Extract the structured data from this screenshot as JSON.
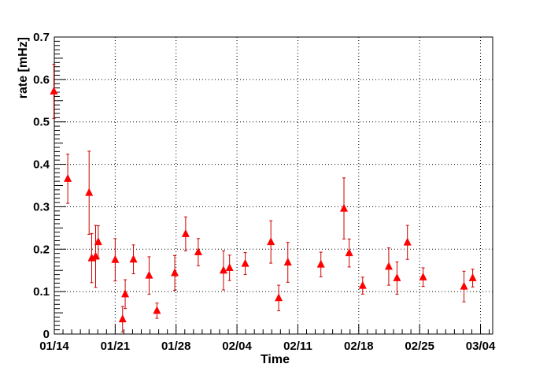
{
  "chart_data": {
    "type": "scatter",
    "title": "",
    "xlabel": "Time",
    "ylabel": "rate [mHz]",
    "x_ticks": [
      "01/14",
      "01/21",
      "01/28",
      "02/04",
      "02/11",
      "02/18",
      "02/25",
      "03/04"
    ],
    "x_tick_days": [
      13,
      20,
      27,
      34,
      41,
      48,
      55,
      62
    ],
    "xlim": [
      13.0,
      63.4
    ],
    "ylim": [
      0,
      0.7
    ],
    "y_ticks": [
      0,
      0.1,
      0.2,
      0.3,
      0.4,
      0.5,
      0.6,
      0.7
    ],
    "y_tick_labels": [
      "0",
      "0.1",
      "0.2",
      "0.3",
      "0.4",
      "0.5",
      "0.6",
      "0.7"
    ],
    "grid": true,
    "marker": "triangle",
    "marker_color": "#ff0000",
    "errorbar_color": "#cc0000",
    "series": [
      {
        "x": [
          12.95,
          14.55,
          17.0,
          17.3,
          17.75,
          18.05,
          20.0,
          20.85,
          21.15,
          22.1,
          23.9,
          24.8,
          26.85,
          28.1,
          29.55,
          32.45,
          33.15,
          34.95,
          37.9,
          38.8,
          39.85,
          43.65,
          46.3,
          46.9,
          48.45,
          51.45,
          52.4,
          53.6,
          55.4,
          60.1,
          61.1
        ],
        "y": [
          0.572,
          0.366,
          0.333,
          0.179,
          0.183,
          0.217,
          0.175,
          0.035,
          0.094,
          0.176,
          0.138,
          0.055,
          0.144,
          0.236,
          0.193,
          0.15,
          0.156,
          0.166,
          0.217,
          0.085,
          0.169,
          0.164,
          0.296,
          0.191,
          0.114,
          0.159,
          0.132,
          0.216,
          0.134,
          0.112,
          0.132
        ],
        "err": [
          0.064,
          0.058,
          0.098,
          0.058,
          0.073,
          0.038,
          0.05,
          0.03,
          0.034,
          0.034,
          0.044,
          0.018,
          0.041,
          0.04,
          0.032,
          0.046,
          0.03,
          0.026,
          0.05,
          0.03,
          0.047,
          0.029,
          0.072,
          0.033,
          0.02,
          0.044,
          0.038,
          0.04,
          0.022,
          0.036,
          0.021
        ]
      }
    ]
  }
}
